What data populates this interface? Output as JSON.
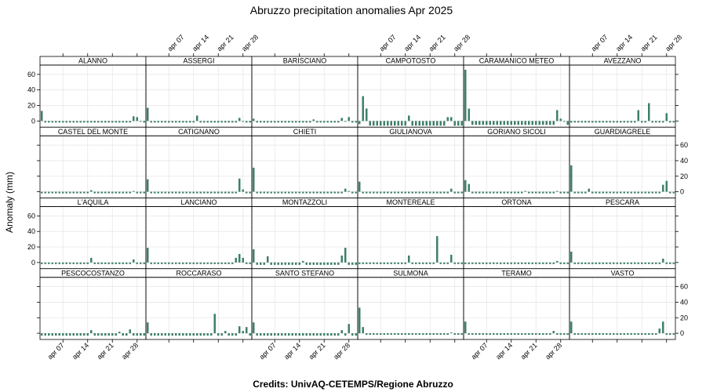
{
  "chart_data": {
    "type": "bar",
    "title": "Abruzzo precipitation anomalies Apr 2025",
    "ylabel": "Anomaly (mm)",
    "xlabel": "",
    "footer": "Credits: UnivAQ-CETEMPS/Regione Abruzzo",
    "ylim": [
      -8,
      72
    ],
    "yticks": [
      0,
      20,
      40,
      60
    ],
    "x_start_day": 1,
    "x_end_day": 30,
    "xticks": [
      {
        "day": 7,
        "label": "apr 07"
      },
      {
        "day": 14,
        "label": "apr 14"
      },
      {
        "day": 21,
        "label": "apr 21"
      },
      {
        "day": 28,
        "label": "apr 28"
      }
    ],
    "grid": true,
    "bar_color": "#3d7f69",
    "layout": {
      "columns": 6,
      "rows": 4
    },
    "series": [
      {
        "name": "ALANNO",
        "values": [
          13,
          -2,
          -2,
          -2,
          -2,
          -2,
          -2,
          -2,
          -2,
          -2,
          -2,
          -2,
          -2,
          -2,
          -2,
          -2,
          -2,
          -2,
          -2,
          -2,
          -2,
          -2,
          -2,
          -2,
          -2,
          -2,
          6,
          5,
          -1,
          -2
        ]
      },
      {
        "name": "ASSERGI",
        "values": [
          17,
          -2,
          -2,
          -2,
          -2,
          -2,
          -2,
          -2,
          -2,
          -2,
          -2,
          -2,
          -2,
          -2,
          7,
          -2,
          -2,
          -2,
          -2,
          -2,
          -2,
          -2,
          -2,
          -2,
          -2,
          -2,
          4,
          -1,
          -2,
          -2
        ]
      },
      {
        "name": "BARISCIANO",
        "values": [
          3,
          -2,
          -2,
          -2,
          -2,
          -2,
          -2,
          -2,
          -2,
          -2,
          -2,
          -2,
          -2,
          -2,
          -2,
          -2,
          -2,
          2,
          -2,
          -2,
          -2,
          -2,
          -2,
          -2,
          -2,
          4,
          -1,
          5,
          -2,
          -2
        ]
      },
      {
        "name": "CAMPOTOSTO",
        "values": [
          -4,
          32,
          16,
          -6,
          -6,
          -6,
          -6,
          -6,
          -6,
          -6,
          -6,
          -6,
          -6,
          -6,
          7,
          -6,
          -6,
          -6,
          -6,
          -6,
          -6,
          -6,
          -6,
          -6,
          -6,
          5,
          5,
          -6,
          -6,
          -6
        ]
      },
      {
        "name": "CARAMANICO METEO",
        "values": [
          66,
          16,
          -5,
          -5,
          -5,
          -5,
          -5,
          -5,
          -5,
          -5,
          -5,
          -5,
          -5,
          -5,
          -5,
          -5,
          -5,
          -5,
          -5,
          -5,
          -5,
          -5,
          -5,
          -5,
          -5,
          -5,
          14,
          3,
          -1,
          -5
        ]
      },
      {
        "name": "AVEZZANO",
        "values": [
          -2,
          -2,
          -2,
          -2,
          -2,
          -2,
          -2,
          -2,
          -2,
          -2,
          -2,
          -2,
          -2,
          -2,
          -2,
          -2,
          -2,
          -2,
          -2,
          14,
          -2,
          -2,
          23,
          -2,
          -2,
          -2,
          -2,
          10,
          -2,
          -2
        ]
      },
      {
        "name": "CASTEL DEL MONTE",
        "values": [
          -2,
          -2,
          -2,
          -2,
          -2,
          -2,
          -2,
          -2,
          -2,
          -2,
          -2,
          -2,
          -2,
          -2,
          2,
          -2,
          -2,
          -2,
          -2,
          -2,
          -2,
          -2,
          -2,
          -2,
          -2,
          -2,
          1,
          -2,
          -2,
          -2
        ]
      },
      {
        "name": "CATIGNANO",
        "values": [
          16,
          -2,
          -2,
          -2,
          -2,
          -2,
          -2,
          -2,
          -2,
          -2,
          -2,
          -2,
          -2,
          -2,
          -2,
          -2,
          -2,
          -2,
          -2,
          -2,
          -2,
          -2,
          -2,
          -2,
          -2,
          -2,
          17,
          3,
          -2,
          -2
        ]
      },
      {
        "name": "CHIETI",
        "values": [
          31,
          -2,
          -2,
          -2,
          -2,
          -2,
          -2,
          -2,
          -2,
          -2,
          -2,
          -2,
          -2,
          -2,
          -2,
          -2,
          -2,
          -2,
          -2,
          -2,
          -2,
          -2,
          -2,
          -2,
          -2,
          -2,
          4,
          1,
          -2,
          -2
        ]
      },
      {
        "name": "GIULIANOVA",
        "values": [
          13,
          -2,
          -2,
          -2,
          -2,
          -2,
          -2,
          -2,
          -2,
          -2,
          -2,
          -2,
          -2,
          -2,
          -2,
          -2,
          -2,
          -2,
          -2,
          -2,
          -2,
          -2,
          -2,
          -2,
          -2,
          -2,
          4,
          -2,
          -2,
          -2
        ]
      },
      {
        "name": "GORIANO SICOLI",
        "values": [
          15,
          10,
          -2,
          -2,
          -2,
          -2,
          -2,
          -2,
          -2,
          -2,
          -2,
          -2,
          -2,
          -2,
          -2,
          -2,
          -2,
          1,
          -2,
          -2,
          -2,
          -2,
          -2,
          -2,
          -2,
          -2,
          1,
          -2,
          -2,
          -2
        ]
      },
      {
        "name": "GUARDIAGRELE",
        "values": [
          34,
          -2,
          -2,
          -2,
          -2,
          4,
          -2,
          -2,
          -2,
          -2,
          -2,
          -2,
          -2,
          -2,
          -2,
          -2,
          -2,
          -2,
          -2,
          -2,
          -2,
          -2,
          -2,
          -2,
          -2,
          -2,
          9,
          14,
          -2,
          -2
        ]
      },
      {
        "name": "L'AQUILA",
        "values": [
          -2,
          -2,
          -2,
          -2,
          -2,
          -2,
          -2,
          -2,
          -2,
          -2,
          -2,
          -2,
          -2,
          -2,
          6,
          -2,
          -2,
          -2,
          -2,
          -2,
          -2,
          -2,
          -2,
          -2,
          -2,
          -2,
          4,
          -2,
          -2,
          -2
        ]
      },
      {
        "name": "LANCIANO",
        "values": [
          19,
          -2,
          -2,
          -2,
          -2,
          -2,
          -2,
          -2,
          -2,
          -2,
          -2,
          -2,
          -2,
          -2,
          -2,
          -2,
          -2,
          -2,
          -2,
          -2,
          -2,
          -2,
          -2,
          -2,
          -2,
          6,
          11,
          6,
          -2,
          -2
        ]
      },
      {
        "name": "MONTAZZOLI",
        "values": [
          17,
          -3,
          -3,
          -3,
          8,
          -3,
          -3,
          -3,
          -3,
          -3,
          -3,
          -3,
          -3,
          -3,
          2,
          -3,
          -3,
          -3,
          -3,
          -3,
          -3,
          -3,
          -3,
          -3,
          -3,
          9,
          19,
          -3,
          -3,
          -3
        ]
      },
      {
        "name": "MONTEREALE",
        "values": [
          -2,
          -2,
          -2,
          -2,
          -2,
          -2,
          -2,
          -2,
          -2,
          -2,
          -2,
          -2,
          -2,
          -2,
          9,
          -2,
          -2,
          -2,
          -2,
          -2,
          -2,
          -2,
          34,
          -2,
          -2,
          -2,
          10,
          -2,
          -2,
          -2
        ]
      },
      {
        "name": "ORTONA",
        "values": [
          -2,
          -2,
          -2,
          -2,
          -2,
          -2,
          -2,
          -2,
          -2,
          -2,
          -2,
          -2,
          -2,
          -2,
          -2,
          -2,
          -2,
          -2,
          -2,
          -2,
          -2,
          -2,
          -2,
          -2,
          -2,
          -2,
          2,
          -2,
          -2,
          -2
        ]
      },
      {
        "name": "PESCARA",
        "values": [
          14,
          -2,
          -2,
          -2,
          -2,
          -2,
          -2,
          -2,
          -2,
          -2,
          -2,
          -2,
          -2,
          -2,
          -2,
          -2,
          -2,
          -2,
          -2,
          -2,
          -2,
          -2,
          -2,
          -2,
          -2,
          -2,
          5,
          -2,
          -2,
          -2
        ]
      },
      {
        "name": "PESCOCOSTANZO",
        "values": [
          -3,
          -3,
          -3,
          -3,
          -3,
          -3,
          -3,
          -3,
          -3,
          -3,
          -3,
          -3,
          -3,
          -3,
          4,
          -3,
          -3,
          -3,
          -3,
          -3,
          -3,
          -3,
          2,
          -3,
          -3,
          5,
          -3,
          -3,
          -3,
          -3
        ]
      },
      {
        "name": "ROCCARASO",
        "values": [
          14,
          -3,
          -3,
          -3,
          -3,
          -3,
          -3,
          -3,
          -3,
          -3,
          -3,
          -3,
          -3,
          -3,
          -3,
          -3,
          -3,
          -3,
          -3,
          25,
          -3,
          -3,
          3,
          -3,
          -3,
          -3,
          9,
          3,
          8,
          -3
        ]
      },
      {
        "name": "SANTO STEFANO",
        "values": [
          14,
          -3,
          -3,
          -3,
          -3,
          -3,
          -3,
          -3,
          -3,
          -3,
          -3,
          -3,
          -3,
          -3,
          -3,
          -3,
          -3,
          -3,
          -3,
          -3,
          -3,
          -3,
          -3,
          -3,
          -3,
          4,
          -3,
          12,
          -3,
          -3
        ]
      },
      {
        "name": "SULMONA",
        "values": [
          33,
          8,
          -2,
          -2,
          -2,
          -2,
          -2,
          -2,
          -2,
          -2,
          -2,
          -2,
          -2,
          -2,
          -2,
          -2,
          -2,
          -2,
          -2,
          -2,
          -2,
          -2,
          -2,
          -2,
          -2,
          -2,
          1,
          -2,
          -2,
          -2
        ]
      },
      {
        "name": "TERAMO",
        "values": [
          15,
          -2,
          -2,
          -2,
          -2,
          -2,
          -2,
          -2,
          -2,
          -2,
          -2,
          -2,
          -2,
          -2,
          -2,
          -2,
          -2,
          -2,
          -2,
          -2,
          -2,
          -2,
          -2,
          -2,
          -2,
          3,
          -2,
          -2,
          -2,
          -2
        ]
      },
      {
        "name": "VASTO",
        "values": [
          15,
          -2,
          -2,
          -2,
          -2,
          -2,
          -2,
          -2,
          -2,
          -2,
          -2,
          -2,
          -2,
          -2,
          -2,
          -2,
          -2,
          -2,
          -2,
          -2,
          -2,
          -2,
          -2,
          -2,
          -2,
          6,
          15,
          -2,
          -2,
          -2
        ]
      }
    ]
  }
}
